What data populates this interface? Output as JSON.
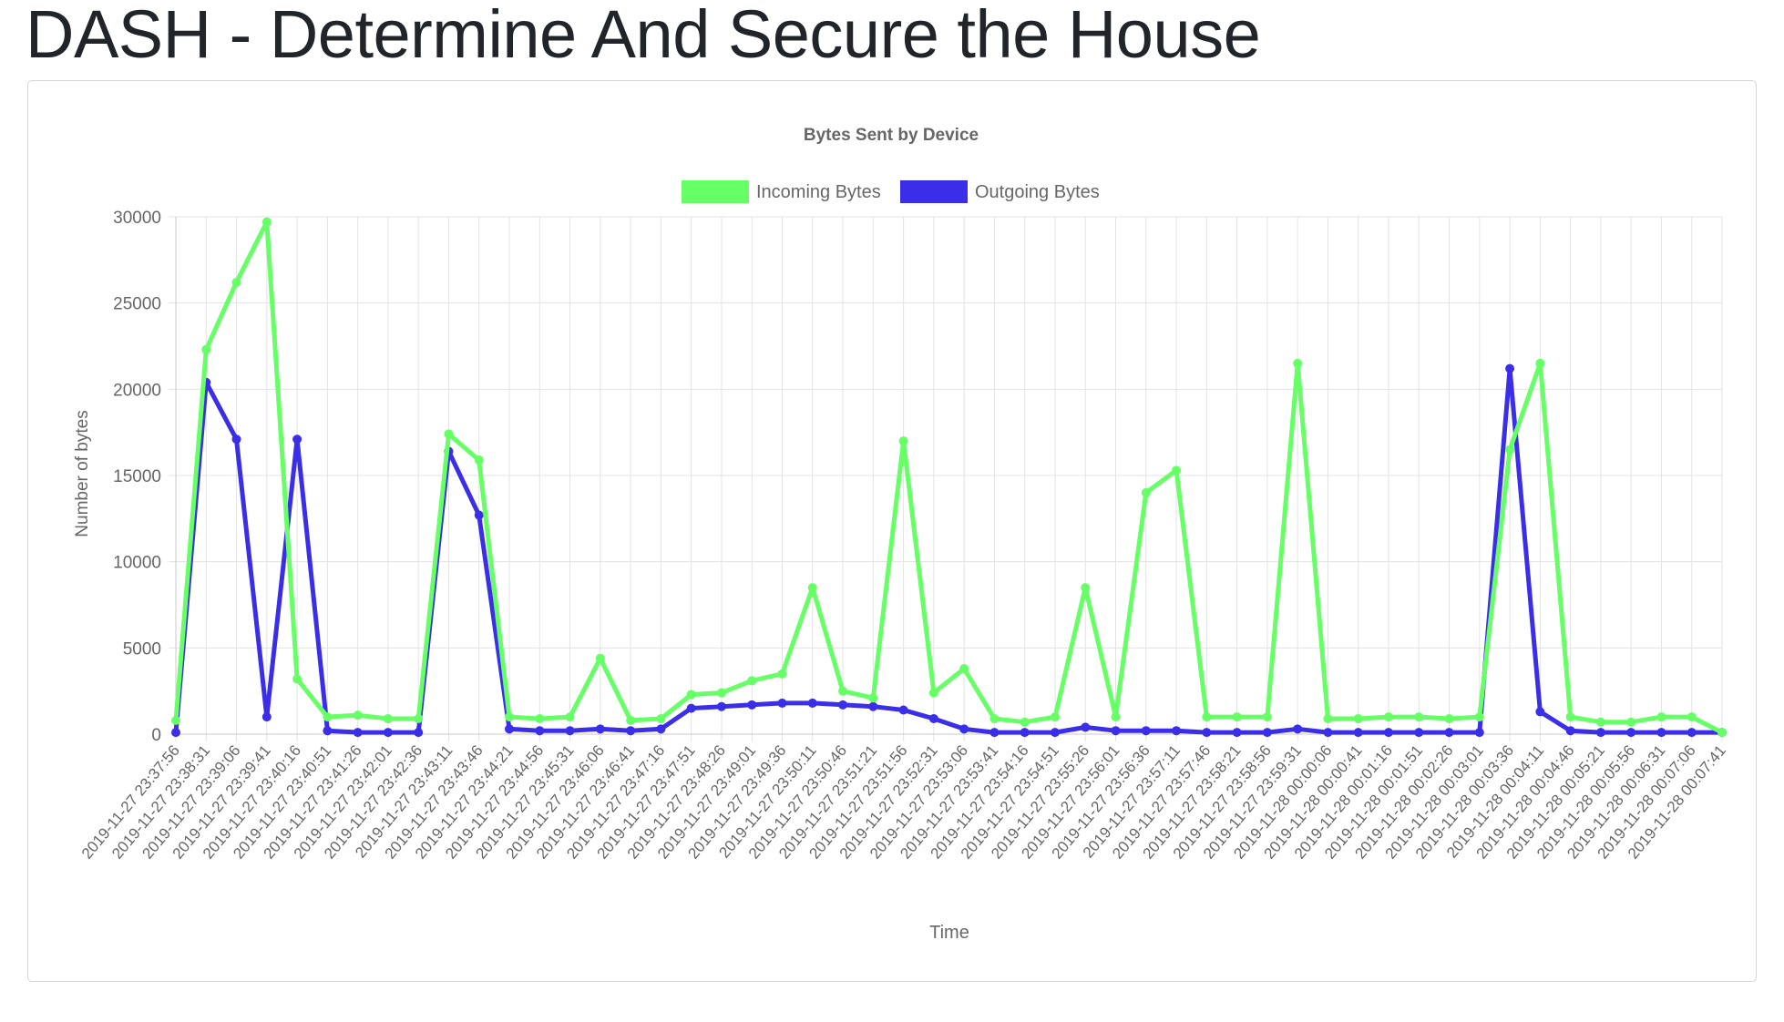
{
  "page": {
    "title": "DASH - Determine And Secure the House"
  },
  "chart_data": {
    "type": "line",
    "title": "Bytes Sent by Device",
    "xlabel": "Time",
    "ylabel": "Number of bytes",
    "ylim": [
      0,
      30000
    ],
    "yticks": [
      0,
      5000,
      10000,
      15000,
      20000,
      25000,
      30000
    ],
    "grid": true,
    "legend_position": "top-center",
    "categories": [
      "2019-11-27 23:37:56",
      "2019-11-27 23:38:31",
      "2019-11-27 23:39:06",
      "2019-11-27 23:39:41",
      "2019-11-27 23:40:16",
      "2019-11-27 23:40:51",
      "2019-11-27 23:41:26",
      "2019-11-27 23:42:01",
      "2019-11-27 23:42:36",
      "2019-11-27 23:43:11",
      "2019-11-27 23:43:46",
      "2019-11-27 23:44:21",
      "2019-11-27 23:44:56",
      "2019-11-27 23:45:31",
      "2019-11-27 23:46:06",
      "2019-11-27 23:46:41",
      "2019-11-27 23:47:16",
      "2019-11-27 23:47:51",
      "2019-11-27 23:48:26",
      "2019-11-27 23:49:01",
      "2019-11-27 23:49:36",
      "2019-11-27 23:50:11",
      "2019-11-27 23:50:46",
      "2019-11-27 23:51:21",
      "2019-11-27 23:51:56",
      "2019-11-27 23:52:31",
      "2019-11-27 23:53:06",
      "2019-11-27 23:53:41",
      "2019-11-27 23:54:16",
      "2019-11-27 23:54:51",
      "2019-11-27 23:55:26",
      "2019-11-27 23:56:01",
      "2019-11-27 23:56:36",
      "2019-11-27 23:57:11",
      "2019-11-27 23:57:46",
      "2019-11-27 23:58:21",
      "2019-11-27 23:58:56",
      "2019-11-27 23:59:31",
      "2019-11-28 00:00:06",
      "2019-11-28 00:00:41",
      "2019-11-28 00:01:16",
      "2019-11-28 00:01:51",
      "2019-11-28 00:02:26",
      "2019-11-28 00:03:01",
      "2019-11-28 00:03:36",
      "2019-11-28 00:04:11",
      "2019-11-28 00:04:46",
      "2019-11-28 00:05:21",
      "2019-11-28 00:05:56",
      "2019-11-28 00:06:31",
      "2019-11-28 00:07:06",
      "2019-11-28 00:07:41"
    ],
    "series": [
      {
        "name": "Incoming Bytes",
        "color": "#66ff66",
        "values": [
          800,
          22300,
          26200,
          29700,
          3200,
          1000,
          1100,
          900,
          900,
          17400,
          15900,
          1000,
          900,
          1000,
          4400,
          800,
          900,
          2300,
          2400,
          3100,
          3500,
          8500,
          2500,
          2100,
          17000,
          2400,
          3800,
          900,
          700,
          1000,
          8500,
          1000,
          14000,
          15300,
          1000,
          1000,
          1000,
          21500,
          900,
          900,
          1000,
          1000,
          900,
          1000,
          16500,
          21500,
          1000,
          700,
          700,
          1000,
          1000,
          100
        ]
      },
      {
        "name": "Outgoing Bytes",
        "color": "#3b2ee8",
        "values": [
          100,
          20400,
          17100,
          1000,
          17100,
          200,
          100,
          100,
          100,
          16400,
          12700,
          300,
          200,
          200,
          300,
          200,
          300,
          1500,
          1600,
          1700,
          1800,
          1800,
          1700,
          1600,
          1400,
          900,
          300,
          100,
          100,
          100,
          400,
          200,
          200,
          200,
          100,
          100,
          100,
          300,
          100,
          100,
          100,
          100,
          100,
          100,
          21200,
          1300,
          200,
          100,
          100,
          100,
          100,
          100
        ]
      }
    ]
  }
}
